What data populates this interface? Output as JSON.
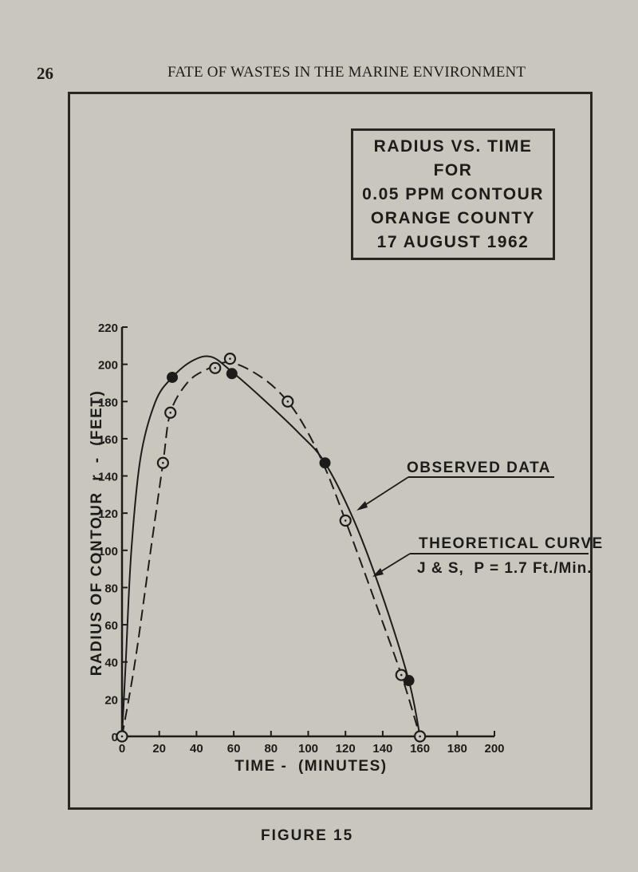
{
  "page": {
    "page_number": "26",
    "running_head": "FATE OF WASTES IN THE MARINE ENVIRONMENT",
    "figure_caption": "FIGURE 15"
  },
  "title_box": {
    "lines": [
      "RADIUS VS. TIME",
      "FOR",
      "0.05 PPM CONTOUR",
      "ORANGE COUNTY",
      "17 AUGUST 1962"
    ]
  },
  "annotations": {
    "observed": "OBSERVED DATA",
    "theoretical_1": "THEORETICAL CURVE",
    "theoretical_2": "J & S,  P = 1.7 Ft./Min."
  },
  "axes": {
    "xlabel": "TIME -  (MINUTES)",
    "ylabel": "RADIUS OF CONTOUR  r  -  (FEET)",
    "x_ticks": [
      "0",
      "20",
      "40",
      "60",
      "80",
      "100",
      "120",
      "140",
      "160",
      "180",
      "200"
    ],
    "y_ticks": [
      "0",
      "20",
      "40",
      "60",
      "80",
      "100",
      "120",
      "140",
      "160",
      "180",
      "200",
      "220"
    ]
  },
  "colors": {
    "paper": "#c9c7bd",
    "ink": "#1e1c1a"
  },
  "chart_data": {
    "type": "line",
    "title": "RADIUS VS. TIME FOR 0.05 PPM CONTOUR ORANGE COUNTY 17 AUGUST 1962",
    "xlabel": "TIME - (MINUTES)",
    "ylabel": "RADIUS OF CONTOUR r - (FEET)",
    "xlim": [
      0,
      200
    ],
    "ylim": [
      0,
      220
    ],
    "x_ticks": [
      0,
      20,
      40,
      60,
      80,
      100,
      120,
      140,
      160,
      180,
      200
    ],
    "y_ticks": [
      0,
      20,
      40,
      60,
      80,
      100,
      120,
      140,
      160,
      180,
      200,
      220
    ],
    "grid": false,
    "legend": "annotations with leader arrows (right side)",
    "series": [
      {
        "name": "OBSERVED DATA",
        "style": "solid line, filled circle markers",
        "points": [
          [
            0,
            0
          ],
          [
            27,
            193
          ],
          [
            45,
            204
          ],
          [
            59,
            195
          ],
          [
            109,
            147
          ],
          [
            154,
            30
          ],
          [
            160,
            0
          ]
        ],
        "curve": [
          [
            0,
            0
          ],
          [
            2,
            40
          ],
          [
            5,
            100
          ],
          [
            10,
            150
          ],
          [
            18,
            180
          ],
          [
            27,
            193
          ],
          [
            38,
            202
          ],
          [
            48,
            204
          ],
          [
            59,
            196
          ],
          [
            75,
            182
          ],
          [
            95,
            163
          ],
          [
            109,
            147
          ],
          [
            125,
            115
          ],
          [
            140,
            75
          ],
          [
            154,
            30
          ],
          [
            160,
            0
          ]
        ]
      },
      {
        "name": "THEORETICAL CURVE J & S, P = 1.7 Ft./Min.",
        "style": "dashed line, open circle markers",
        "points": [
          [
            0,
            0
          ],
          [
            22,
            147
          ],
          [
            26,
            174
          ],
          [
            50,
            198
          ],
          [
            58,
            203
          ],
          [
            89,
            180
          ],
          [
            120,
            116
          ],
          [
            150,
            33
          ],
          [
            160,
            0
          ]
        ],
        "curve": [
          [
            0,
            0
          ],
          [
            7,
            40
          ],
          [
            14,
            90
          ],
          [
            22,
            147
          ],
          [
            26,
            174
          ],
          [
            35,
            190
          ],
          [
            45,
            197
          ],
          [
            58,
            201
          ],
          [
            75,
            193
          ],
          [
            89,
            180
          ],
          [
            100,
            163
          ],
          [
            110,
            142
          ],
          [
            120,
            116
          ],
          [
            135,
            75
          ],
          [
            150,
            33
          ],
          [
            160,
            0
          ]
        ]
      }
    ]
  }
}
